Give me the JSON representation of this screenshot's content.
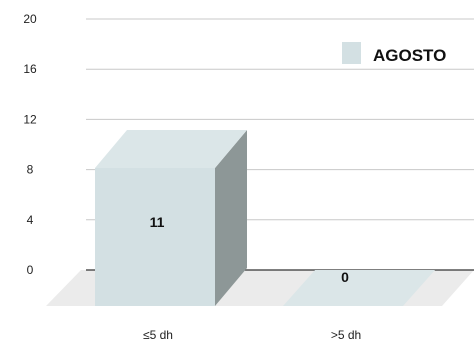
{
  "chart_data": {
    "type": "bar",
    "categories": [
      "≤5 dh",
      ">5 dh"
    ],
    "series": [
      {
        "name": "AGOSTO",
        "values": [
          11,
          0
        ]
      }
    ],
    "data_labels": [
      "11",
      "0"
    ],
    "ylim": [
      0,
      20
    ],
    "y_ticks": [
      "0",
      "4",
      "8",
      "12",
      "16",
      "20"
    ],
    "grid": true,
    "legend_position": "top-right",
    "colors": {
      "bar_front": "#d3e0e3",
      "bar_side": "#8d9797",
      "bar_top": "#dbe6e8",
      "floor": "#ebebeb",
      "grid": "#c8c8c8",
      "axis": "#333333"
    }
  }
}
